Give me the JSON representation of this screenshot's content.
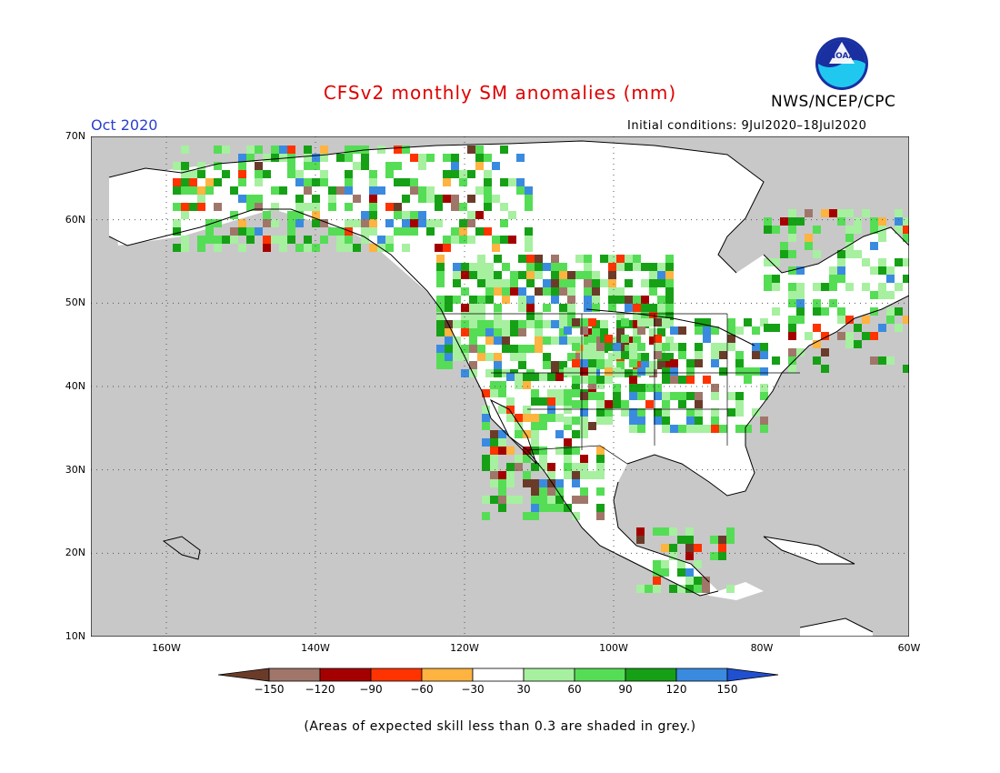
{
  "title": "CFSv2 monthly SM anomalies (mm)",
  "period": "Oct 2020",
  "initial_conditions": "Initial conditions: 9Jul2020–18Jul2020",
  "organization": "NWS/NCEP/CPC",
  "logo_text": "NOAA",
  "footnote": "(Areas of expected skill less than 0.3 are shaded in grey.)",
  "map": {
    "lat_labels": [
      "70N",
      "60N",
      "50N",
      "40N",
      "30N",
      "20N",
      "10N"
    ],
    "lon_labels": [
      "160W",
      "140W",
      "120W",
      "100W",
      "80W",
      "60W"
    ],
    "background_grey": "#c8c8c8",
    "land_white": "#ffffff"
  },
  "legend": {
    "labels": [
      "−150",
      "−120",
      "−90",
      "−60",
      "−30",
      "30",
      "60",
      "90",
      "120",
      "150"
    ],
    "colors": [
      "#6b3b2a",
      "#a0766a",
      "#a50000",
      "#ff3300",
      "#ffb340",
      "#ffffff",
      "#a6f0a0",
      "#55dd55",
      "#16a016",
      "#3a8be0",
      "#2050d0"
    ]
  }
}
